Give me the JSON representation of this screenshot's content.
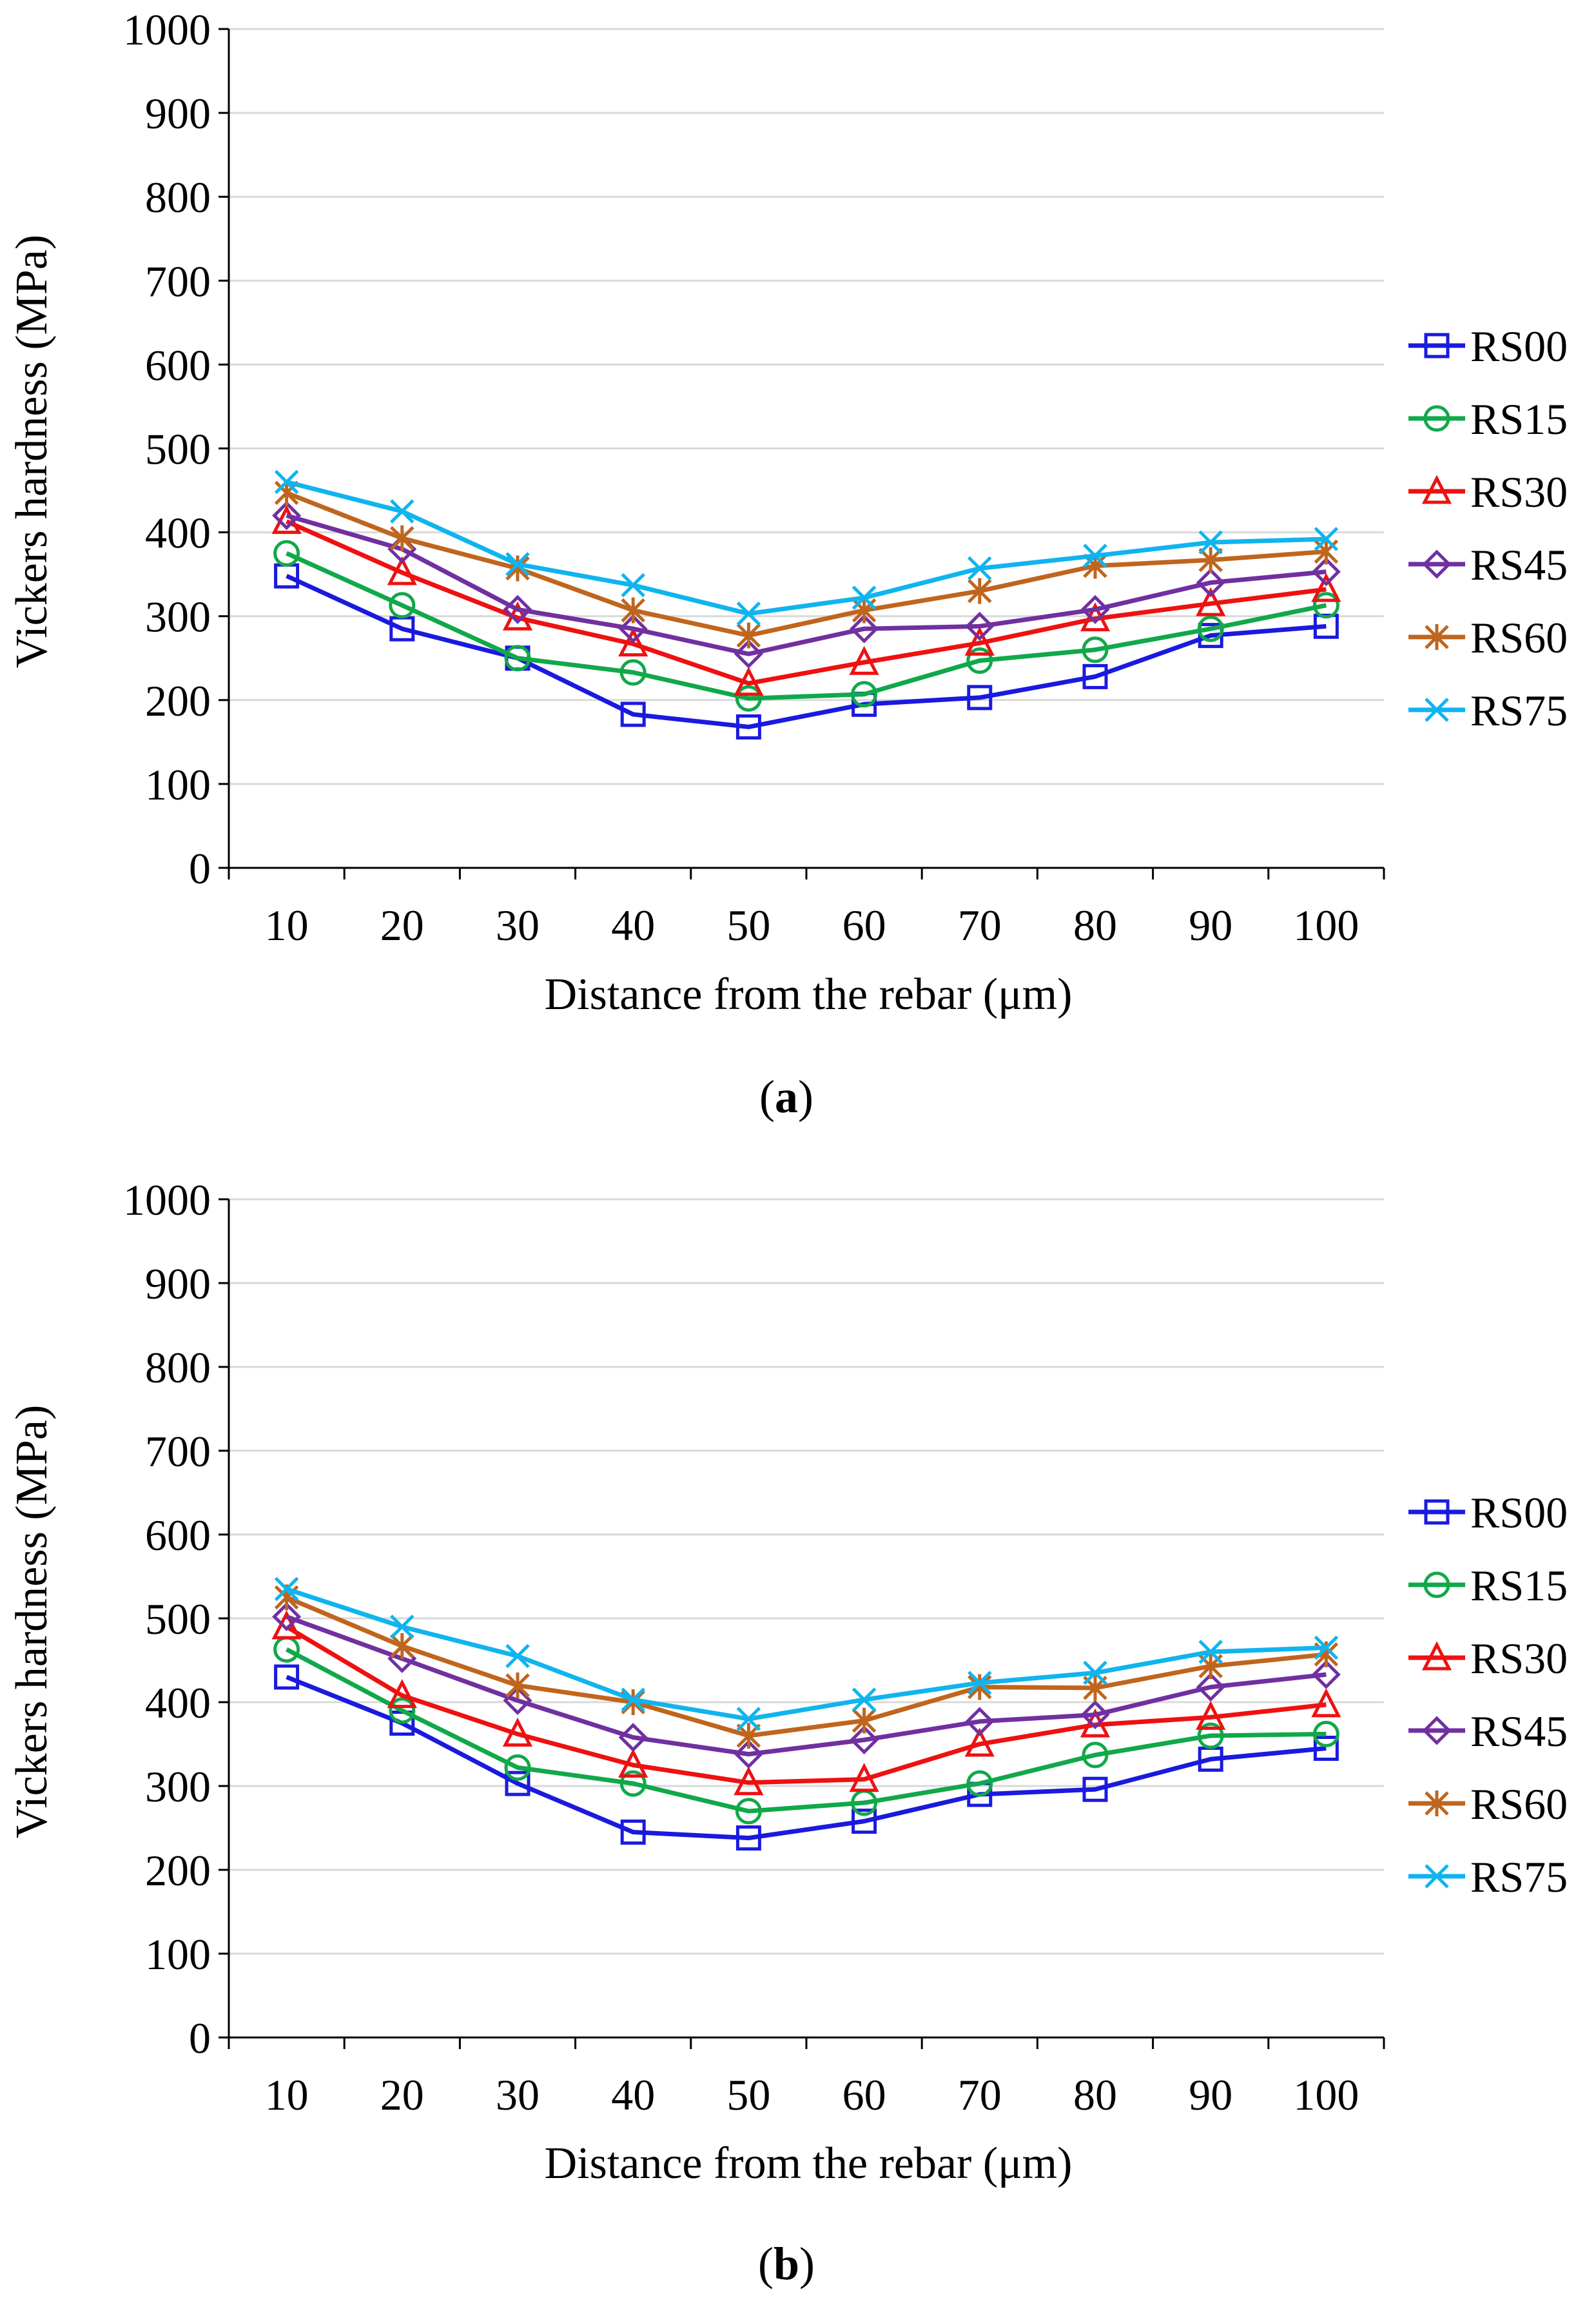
{
  "figure": {
    "panels": [
      {
        "caption_prefix": "(",
        "caption_letter": "a",
        "caption_suffix": ")"
      },
      {
        "caption_prefix": "(",
        "caption_letter": "b",
        "caption_suffix": ")"
      }
    ]
  },
  "chart_data": [
    {
      "type": "line",
      "title": "",
      "xlabel": "Distance from the rebar (μm)",
      "ylabel": "Vickers hardness (MPa)",
      "categories": [
        "10",
        "20",
        "30",
        "40",
        "50",
        "60",
        "70",
        "80",
        "90",
        "100"
      ],
      "ylim": [
        0,
        1000
      ],
      "yticks": [
        "0",
        "100",
        "200",
        "300",
        "400",
        "500",
        "600",
        "700",
        "800",
        "900",
        "1000"
      ],
      "grid": true,
      "legend": "right",
      "series": [
        {
          "name": "RS00",
          "color": "#1a1adf",
          "marker": "square",
          "values": [
            348,
            285,
            250,
            183,
            168,
            195,
            203,
            228,
            277,
            288
          ]
        },
        {
          "name": "RS15",
          "color": "#11a84a",
          "marker": "circle",
          "values": [
            375,
            313,
            250,
            233,
            202,
            207,
            247,
            260,
            285,
            313
          ]
        },
        {
          "name": "RS30",
          "color": "#ee1111",
          "marker": "triangle",
          "values": [
            413,
            352,
            298,
            267,
            220,
            245,
            268,
            297,
            315,
            332
          ]
        },
        {
          "name": "RS45",
          "color": "#7030a0",
          "marker": "diamond",
          "values": [
            420,
            380,
            308,
            285,
            255,
            285,
            288,
            308,
            340,
            353
          ]
        },
        {
          "name": "RS60",
          "color": "#c0651d",
          "marker": "star",
          "values": [
            447,
            393,
            357,
            307,
            277,
            307,
            330,
            360,
            367,
            377
          ]
        },
        {
          "name": "RS75",
          "color": "#10b4ee",
          "marker": "x",
          "values": [
            460,
            425,
            362,
            337,
            303,
            322,
            357,
            372,
            388,
            392
          ]
        }
      ]
    },
    {
      "type": "line",
      "title": "",
      "xlabel": "Distance from the rebar (μm)",
      "ylabel": "Vickers hardness (MPa)",
      "categories": [
        "10",
        "20",
        "30",
        "40",
        "50",
        "60",
        "70",
        "80",
        "90",
        "100"
      ],
      "ylim": [
        0,
        1000
      ],
      "yticks": [
        "0",
        "100",
        "200",
        "300",
        "400",
        "500",
        "600",
        "700",
        "800",
        "900",
        "1000"
      ],
      "grid": true,
      "legend": "right",
      "series": [
        {
          "name": "RS00",
          "color": "#1a1adf",
          "marker": "square",
          "values": [
            430,
            375,
            303,
            245,
            238,
            258,
            290,
            296,
            332,
            345
          ]
        },
        {
          "name": "RS15",
          "color": "#11a84a",
          "marker": "circle",
          "values": [
            463,
            390,
            322,
            303,
            270,
            280,
            303,
            337,
            360,
            362
          ]
        },
        {
          "name": "RS30",
          "color": "#ee1111",
          "marker": "triangle",
          "values": [
            490,
            408,
            362,
            325,
            304,
            308,
            350,
            373,
            382,
            397
          ]
        },
        {
          "name": "RS45",
          "color": "#7030a0",
          "marker": "diamond",
          "values": [
            502,
            452,
            402,
            358,
            338,
            355,
            377,
            385,
            418,
            433
          ]
        },
        {
          "name": "RS60",
          "color": "#c0651d",
          "marker": "star",
          "values": [
            525,
            467,
            420,
            400,
            360,
            378,
            418,
            417,
            443,
            457
          ]
        },
        {
          "name": "RS75",
          "color": "#10b4ee",
          "marker": "x",
          "values": [
            535,
            490,
            455,
            403,
            380,
            403,
            423,
            435,
            460,
            465
          ]
        }
      ]
    }
  ]
}
